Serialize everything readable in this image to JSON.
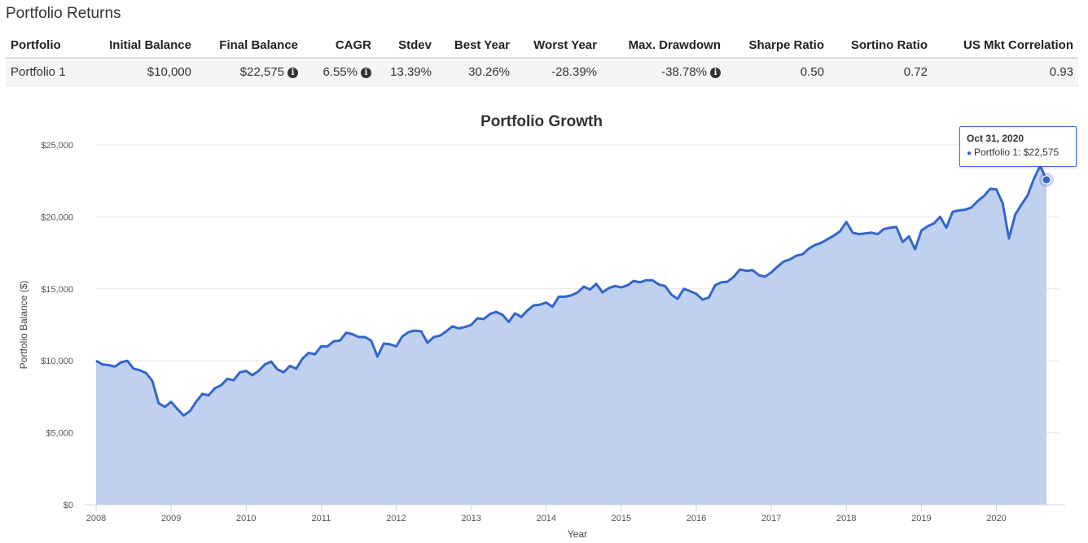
{
  "section": {
    "title": "Portfolio Returns"
  },
  "table": {
    "headers": [
      "Portfolio",
      "Initial Balance",
      "Final Balance",
      "CAGR",
      "Stdev",
      "Best Year",
      "Worst Year",
      "Max. Drawdown",
      "Sharpe Ratio",
      "Sortino Ratio",
      "US Mkt Correlation"
    ],
    "row": {
      "portfolio": "Portfolio 1",
      "initial_balance": "$10,000",
      "final_balance": "$22,575",
      "cagr": "6.55%",
      "stdev": "13.39%",
      "best_year": "30.26%",
      "worst_year": "-28.39%",
      "max_drawdown": "-38.78%",
      "sharpe_ratio": "0.50",
      "sortino_ratio": "0.72",
      "us_mkt_correlation": "0.93"
    },
    "info_icon": "info-circle-icon",
    "info_glyph": "i"
  },
  "tooltip": {
    "date": "Oct 31, 2020",
    "label": "Portfolio 1: $22,575",
    "bullet": "●"
  },
  "colors": {
    "line": "#3366cc",
    "area": "#c0d1ef",
    "grid": "#e6e6e6",
    "tooltip_border": "#3a6bd6"
  },
  "chart_data": {
    "type": "area",
    "title": "Portfolio Growth",
    "xlabel": "Year",
    "ylabel": "Portfolio Balance ($)",
    "xlim": [
      2008,
      2020.83
    ],
    "ylim": [
      0,
      25000
    ],
    "grid": true,
    "legend": "none",
    "x_ticks": [
      "2008",
      "2009",
      "2010",
      "2011",
      "2012",
      "2013",
      "2014",
      "2015",
      "2016",
      "2017",
      "2018",
      "2019",
      "2020"
    ],
    "y_ticks": [
      "$0",
      "$5,000",
      "$10,000",
      "$15,000",
      "$20,000",
      "$25,000"
    ],
    "y_tick_values": [
      0,
      5000,
      10000,
      15000,
      20000,
      25000
    ],
    "series": [
      {
        "name": "Portfolio 1",
        "start": "2008-01",
        "frequency": "monthly",
        "values": [
          10000,
          9750,
          9700,
          9600,
          9900,
          10000,
          9450,
          9350,
          9150,
          8600,
          7050,
          6800,
          7150,
          6650,
          6200,
          6500,
          7150,
          7700,
          7600,
          8100,
          8300,
          8750,
          8650,
          9200,
          9300,
          9000,
          9300,
          9750,
          9950,
          9400,
          9200,
          9650,
          9450,
          10150,
          10550,
          10450,
          11000,
          11000,
          11350,
          11400,
          11950,
          11850,
          11650,
          11650,
          11400,
          10300,
          11200,
          11150,
          11000,
          11700,
          12000,
          12100,
          12050,
          11250,
          11650,
          11750,
          12050,
          12400,
          12250,
          12350,
          12500,
          12950,
          12900,
          13250,
          13400,
          13200,
          12700,
          13300,
          13050,
          13500,
          13850,
          13900,
          14050,
          13750,
          14450,
          14450,
          14550,
          14750,
          15150,
          14950,
          15350,
          14750,
          15050,
          15200,
          15100,
          15250,
          15550,
          15450,
          15600,
          15600,
          15300,
          15200,
          14600,
          14300,
          15000,
          14850,
          14650,
          14250,
          14400,
          15250,
          15450,
          15500,
          15850,
          16350,
          16250,
          16300,
          15950,
          15850,
          16150,
          16550,
          16900,
          17050,
          17300,
          17400,
          17800,
          18050,
          18200,
          18450,
          18700,
          19000,
          19650,
          18900,
          18800,
          18850,
          18900,
          18800,
          19150,
          19250,
          19300,
          18250,
          18650,
          17750,
          19050,
          19350,
          19550,
          20000,
          19250,
          20350,
          20450,
          20500,
          20650,
          21100,
          21450,
          21950,
          21900,
          20950,
          18500,
          20150,
          20850,
          21500,
          22650,
          23550,
          22575
        ]
      }
    ],
    "highlight": {
      "date": "2020-10-31",
      "value": 22575
    }
  }
}
